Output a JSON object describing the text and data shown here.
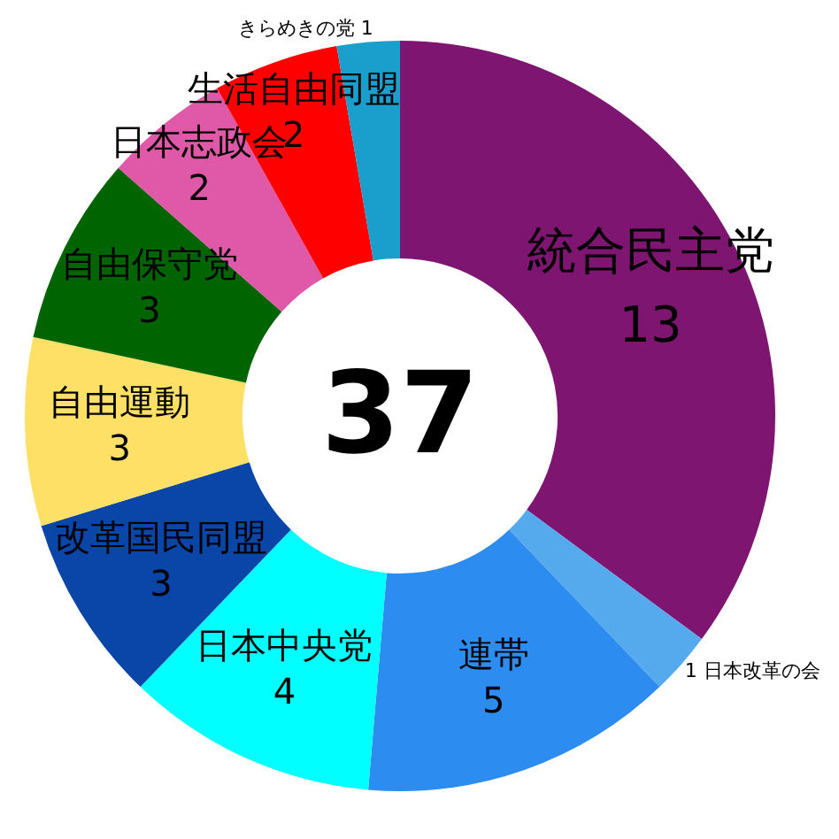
{
  "chart_data": {
    "type": "donut",
    "categories": [
      "統合民主党",
      "日本改革の会",
      "連帯",
      "日本中央党",
      "改革国民同盟",
      "自由運動",
      "自由保守党",
      "日本志政会",
      "生活自由同盟",
      "きらめきの党"
    ],
    "values": [
      13,
      1,
      5,
      4,
      3,
      3,
      3,
      2,
      2,
      1
    ],
    "colors": [
      "#7e1671",
      "#55aaee",
      "#2d8cf0",
      "#00ffff",
      "#0a45a8",
      "#ffe066",
      "#006400",
      "#e058a8",
      "#ff0000",
      "#1a9ecc"
    ],
    "data_labels": true,
    "annotations": [
      "37"
    ],
    "legend": false
  }
}
